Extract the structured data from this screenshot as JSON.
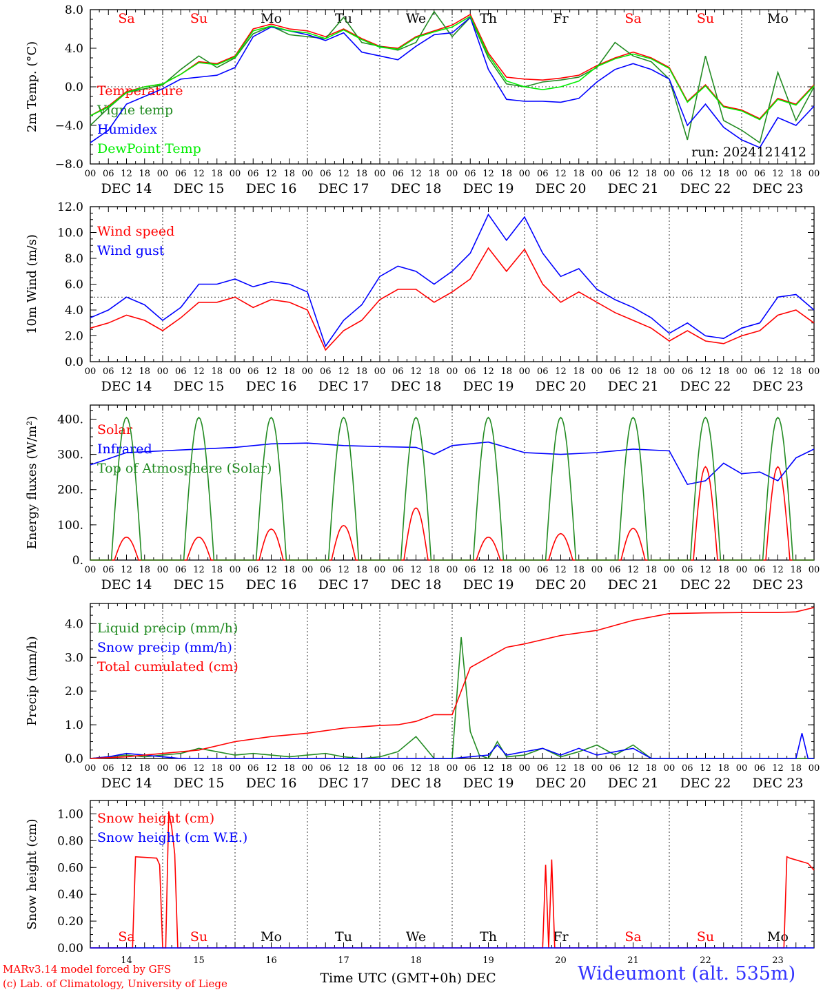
{
  "chart_data": [
    {
      "type": "line",
      "ylabel": "2m Temp. (°C)",
      "ylim": [
        -8,
        8
      ],
      "yticks": [
        "8.0",
        "4.0",
        "0.0",
        "−4.0",
        "−8.0"
      ],
      "ytick_values": [
        8,
        4,
        0,
        -4,
        -8
      ],
      "reference_line": 0,
      "day_labels": [
        "Sa",
        "Su",
        "Mo",
        "Tu",
        "We",
        "Th",
        "Fr",
        "Sa",
        "Su",
        "Mo"
      ],
      "day_label_colors": [
        "#ff0000",
        "#ff0000",
        "#000000",
        "#000000",
        "#000000",
        "#000000",
        "#000000",
        "#ff0000",
        "#ff0000",
        "#000000"
      ],
      "run_label": "run: 2024121412",
      "x_hours": [
        0,
        6,
        12,
        18,
        24,
        30,
        36,
        42,
        48,
        54,
        60,
        66,
        72,
        78,
        84,
        90,
        96,
        102,
        108,
        114,
        120,
        126,
        132,
        138,
        144,
        150,
        156,
        162,
        168,
        174,
        180,
        186,
        192,
        198,
        204,
        210,
        216,
        222,
        228,
        234,
        240
      ],
      "series": [
        {
          "name": "Temperature",
          "color": "#ff0000",
          "values": [
            -3.0,
            -2.0,
            -0.5,
            0.0,
            0.3,
            1.3,
            2.6,
            2.4,
            3.2,
            6.0,
            6.5,
            6.0,
            5.8,
            5.2,
            6.0,
            5.0,
            4.2,
            4.0,
            5.2,
            5.8,
            6.4,
            7.5,
            3.5,
            1.0,
            0.8,
            0.7,
            0.9,
            1.2,
            2.2,
            3.0,
            3.6,
            3.0,
            2.0,
            -1.5,
            0.2,
            -2.0,
            -2.4,
            -3.3,
            -1.2,
            -1.8,
            0.2
          ]
        },
        {
          "name": "Vigne temp",
          "color": "#228b22",
          "values": [
            -4.0,
            -2.2,
            -0.6,
            -0.2,
            0.2,
            1.8,
            3.2,
            2.0,
            3.0,
            5.5,
            6.3,
            5.4,
            5.2,
            5.0,
            7.2,
            4.6,
            4.2,
            3.8,
            4.6,
            7.8,
            5.2,
            7.2,
            3.0,
            0.3,
            0.0,
            0.5,
            0.7,
            1.0,
            2.0,
            4.6,
            3.2,
            2.6,
            0.8,
            -5.5,
            3.2,
            -3.5,
            -4.5,
            -5.8,
            1.5,
            -3.5,
            0.0
          ]
        },
        {
          "name": "Humidex",
          "color": "#0000ff",
          "values": [
            -5.8,
            -4.5,
            -1.8,
            -1.0,
            -0.2,
            0.8,
            1.0,
            1.2,
            2.0,
            5.2,
            6.2,
            5.8,
            5.4,
            4.8,
            5.6,
            3.6,
            3.2,
            2.8,
            4.2,
            5.4,
            5.6,
            7.2,
            1.8,
            -1.3,
            -1.5,
            -1.5,
            -1.6,
            -1.2,
            0.5,
            1.8,
            2.4,
            1.8,
            0.8,
            -4.0,
            -1.8,
            -4.2,
            -5.5,
            -6.3,
            -3.2,
            -4.0,
            -2.0
          ]
        },
        {
          "name": "DewPoint Temp",
          "color": "#00ee00",
          "values": [
            -3.0,
            -2.1,
            -0.6,
            0.0,
            0.3,
            1.3,
            2.5,
            2.3,
            3.1,
            5.8,
            6.3,
            5.8,
            5.6,
            5.0,
            5.9,
            4.9,
            4.1,
            3.9,
            5.1,
            5.7,
            6.2,
            7.3,
            3.3,
            0.6,
            0.0,
            -0.3,
            0.0,
            0.6,
            2.1,
            2.9,
            3.4,
            2.9,
            1.9,
            -1.6,
            0.1,
            -2.1,
            -2.5,
            -3.4,
            -1.3,
            -1.9,
            0.1
          ]
        }
      ]
    },
    {
      "type": "line",
      "ylabel": "10m Wind (m/s)",
      "ylim": [
        0,
        12
      ],
      "yticks": [
        "12.0",
        "10.0",
        "8.0",
        "6.0",
        "4.0",
        "2.0",
        "0.0"
      ],
      "ytick_values": [
        12,
        10,
        8,
        6,
        4,
        2,
        0
      ],
      "reference_line": 5,
      "x_hours": [
        0,
        6,
        12,
        18,
        24,
        30,
        36,
        42,
        48,
        54,
        60,
        66,
        72,
        78,
        84,
        90,
        96,
        102,
        108,
        114,
        120,
        126,
        132,
        138,
        144,
        150,
        156,
        162,
        168,
        174,
        180,
        186,
        192,
        198,
        204,
        210,
        216,
        222,
        228,
        234,
        240
      ],
      "series": [
        {
          "name": "Wind speed",
          "color": "#ff0000",
          "values": [
            2.6,
            3.0,
            3.6,
            3.2,
            2.4,
            3.4,
            4.6,
            4.6,
            5.0,
            4.2,
            4.8,
            4.6,
            4.0,
            0.9,
            2.4,
            3.2,
            4.8,
            5.6,
            5.6,
            4.6,
            5.4,
            6.4,
            8.8,
            7.0,
            8.7,
            6.0,
            4.6,
            5.4,
            4.6,
            3.8,
            3.2,
            2.6,
            1.6,
            2.4,
            1.6,
            1.4,
            2.0,
            2.4,
            3.6,
            4.0,
            3.0
          ]
        },
        {
          "name": "Wind gust",
          "color": "#0000ff",
          "values": [
            3.4,
            4.0,
            5.0,
            4.4,
            3.2,
            4.2,
            6.0,
            6.0,
            6.4,
            5.8,
            6.2,
            6.0,
            5.4,
            1.2,
            3.2,
            4.4,
            6.6,
            7.4,
            7.0,
            6.0,
            7.0,
            8.4,
            11.4,
            9.4,
            11.2,
            8.4,
            6.6,
            7.2,
            5.6,
            4.8,
            4.2,
            3.4,
            2.2,
            3.0,
            2.0,
            1.8,
            2.6,
            3.0,
            5.0,
            5.2,
            4.0
          ]
        }
      ]
    },
    {
      "type": "line",
      "ylabel": "Energy fluxes (W/m²)",
      "ylim": [
        0,
        440
      ],
      "yticks": [
        "400.",
        "300.",
        "200.",
        "100.",
        "0."
      ],
      "ytick_values": [
        400,
        300,
        200,
        100,
        0
      ],
      "day_peaks": {
        "solar": [
          65,
          65,
          88,
          98,
          148,
          65,
          75,
          90,
          265,
          265
        ],
        "toa": [
          405,
          405,
          405,
          405,
          405,
          405,
          405,
          405,
          405,
          405
        ]
      },
      "series": [
        {
          "name": "Solar",
          "color": "#ff0000"
        },
        {
          "name": "Infrared",
          "color": "#0000ff",
          "x_hours": [
            0,
            12,
            24,
            36,
            48,
            60,
            72,
            84,
            96,
            108,
            114,
            120,
            132,
            144,
            156,
            168,
            180,
            192,
            198,
            204,
            210,
            216,
            222,
            228,
            234,
            240
          ],
          "values": [
            270,
            305,
            310,
            315,
            320,
            330,
            332,
            325,
            322,
            320,
            300,
            325,
            335,
            305,
            300,
            305,
            315,
            310,
            215,
            225,
            275,
            245,
            250,
            225,
            290,
            315
          ]
        },
        {
          "name": "Top of Atmosphere (Solar)",
          "color": "#228b22"
        }
      ]
    },
    {
      "type": "line",
      "ylabel": "Precip (mm/h)",
      "ylim": [
        0,
        4.6
      ],
      "yticks": [
        "4.0",
        "3.0",
        "2.0",
        "1.0",
        "0.0"
      ],
      "ytick_values": [
        4,
        3,
        2,
        1,
        0
      ],
      "series": [
        {
          "name": "Liquid precip (mm/h)",
          "color": "#228b22",
          "x_hours": [
            0,
            6,
            12,
            18,
            24,
            30,
            36,
            42,
            48,
            54,
            60,
            66,
            72,
            78,
            84,
            90,
            96,
            102,
            108,
            114,
            120,
            123,
            126,
            129,
            132,
            135,
            138,
            144,
            150,
            156,
            162,
            168,
            174,
            180,
            186,
            192,
            198,
            204,
            210,
            216,
            222,
            228,
            234,
            240
          ],
          "values": [
            0.0,
            0.05,
            0.1,
            0.05,
            0.1,
            0.15,
            0.3,
            0.2,
            0.1,
            0.15,
            0.1,
            0.05,
            0.1,
            0.15,
            0.05,
            0.0,
            0.05,
            0.2,
            0.65,
            0.0,
            0.0,
            3.6,
            0.8,
            0.1,
            0.0,
            0.5,
            0.05,
            0.1,
            0.3,
            0.05,
            0.2,
            0.4,
            0.1,
            0.4,
            0.0,
            0.0,
            0.0,
            0.0,
            0.0,
            0.0,
            0.0,
            0.0,
            0.0,
            0.0
          ]
        },
        {
          "name": "Snow precip (mm/h)",
          "color": "#0000ff",
          "x_hours": [
            0,
            6,
            12,
            18,
            24,
            30,
            36,
            42,
            48,
            60,
            72,
            84,
            96,
            108,
            120,
            132,
            135,
            138,
            144,
            150,
            156,
            162,
            168,
            174,
            180,
            186,
            192,
            204,
            216,
            228,
            234,
            236,
            238,
            240
          ],
          "values": [
            0.0,
            0.05,
            0.15,
            0.1,
            0.05,
            0.0,
            0.0,
            0.0,
            0.0,
            0.0,
            0.0,
            0.0,
            0.0,
            0.0,
            0.0,
            0.1,
            0.4,
            0.1,
            0.2,
            0.3,
            0.1,
            0.3,
            0.1,
            0.2,
            0.3,
            0.0,
            0.0,
            0.0,
            0.0,
            0.0,
            0.0,
            0.75,
            0.0,
            0.0
          ]
        },
        {
          "name": "Total cumulated (cm)",
          "color": "#ff0000",
          "x_hours": [
            0,
            12,
            24,
            36,
            48,
            60,
            72,
            84,
            96,
            102,
            108,
            114,
            120,
            126,
            132,
            138,
            144,
            156,
            168,
            180,
            192,
            204,
            216,
            228,
            234,
            240
          ],
          "values": [
            0.0,
            0.05,
            0.15,
            0.25,
            0.5,
            0.65,
            0.75,
            0.9,
            0.98,
            1.0,
            1.1,
            1.3,
            1.3,
            2.7,
            3.0,
            3.3,
            3.4,
            3.65,
            3.8,
            4.1,
            4.3,
            4.32,
            4.33,
            4.33,
            4.35,
            4.48
          ]
        }
      ]
    },
    {
      "type": "line",
      "ylabel": "Snow height (cm)",
      "xlabel": "Time UTC (GMT+0h) DEC",
      "ylim": [
        0,
        1.1
      ],
      "yticks": [
        "1.00",
        "0.80",
        "0.60",
        "0.40",
        "0.20",
        "0.00"
      ],
      "ytick_values": [
        1.0,
        0.8,
        0.6,
        0.4,
        0.2,
        0.0
      ],
      "day_numbers": [
        "14",
        "15",
        "16",
        "17",
        "18",
        "19",
        "20",
        "21",
        "22",
        "23"
      ],
      "day_labels": [
        "Sa",
        "Su",
        "Mo",
        "Tu",
        "We",
        "Th",
        "Fr",
        "Sa",
        "Su",
        "Mo"
      ],
      "day_label_colors": [
        "#ff0000",
        "#ff0000",
        "#000000",
        "#000000",
        "#000000",
        "#000000",
        "#000000",
        "#ff0000",
        "#ff0000",
        "#000000"
      ],
      "series": [
        {
          "name": "Snow height (cm)",
          "color": "#ff0000",
          "x_hours": [
            0,
            14,
            15,
            22,
            23,
            24,
            25,
            26,
            27,
            28,
            29,
            30,
            33,
            100,
            150,
            151,
            152,
            153,
            154,
            155,
            156,
            230,
            231,
            232,
            238,
            240
          ],
          "values": [
            0,
            0,
            0.68,
            0.67,
            0.62,
            0,
            0,
            1.02,
            0.9,
            0.7,
            0,
            0,
            0,
            0,
            0,
            0.62,
            0,
            0.66,
            0,
            0,
            0,
            0,
            0.68,
            0.67,
            0.63,
            0.58
          ]
        },
        {
          "name": "Snow height (cm W.E.)",
          "color": "#0000ff"
        }
      ]
    }
  ],
  "x_axis": {
    "hour_ticks": [
      "00",
      "06",
      "12",
      "18"
    ],
    "final_tick": "00",
    "date_labels": [
      "DEC 14",
      "DEC 15",
      "DEC 16",
      "DEC 17",
      "DEC 18",
      "DEC 19",
      "DEC 20",
      "DEC 21",
      "DEC 22",
      "DEC 23"
    ]
  },
  "footer": {
    "credit_line1": "MARv3.14 model forced by GFS",
    "credit_line2": "(c) Lab. of Climatology, University of Liege",
    "station": "Wideumont (alt. 535m)"
  },
  "colors": {
    "red": "#ff0000",
    "green": "#228b22",
    "blue": "#0000ff",
    "light_green": "#00ee00",
    "credit": "#ff0000",
    "station": "#3333ff"
  }
}
